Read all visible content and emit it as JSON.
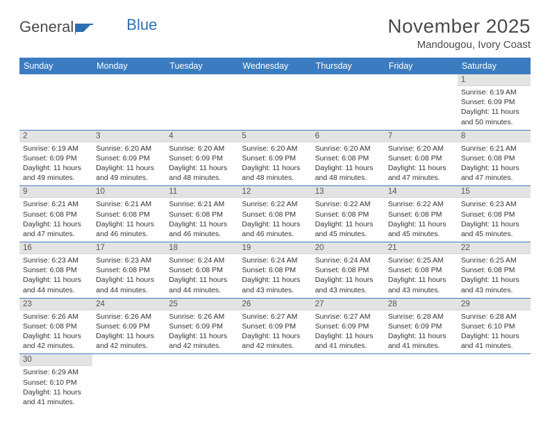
{
  "logo": {
    "text1": "General",
    "text2": "Blue"
  },
  "title": "November 2025",
  "location": "Mandougou, Ivory Coast",
  "colors": {
    "header_bg": "#3b7bbf",
    "header_fg": "#ffffff",
    "daynum_bg": "#e3e3e3",
    "daynum_fg": "#555555",
    "border": "#3b7bbf",
    "text": "#333333",
    "logo_gray": "#4a4a4a",
    "logo_blue": "#2d6fb5"
  },
  "day_headers": [
    "Sunday",
    "Monday",
    "Tuesday",
    "Wednesday",
    "Thursday",
    "Friday",
    "Saturday"
  ],
  "weeks": [
    [
      null,
      null,
      null,
      null,
      null,
      null,
      {
        "n": "1",
        "sr": "Sunrise: 6:19 AM",
        "ss": "Sunset: 6:09 PM",
        "dl": "Daylight: 11 hours and 50 minutes."
      }
    ],
    [
      {
        "n": "2",
        "sr": "Sunrise: 6:19 AM",
        "ss": "Sunset: 6:09 PM",
        "dl": "Daylight: 11 hours and 49 minutes."
      },
      {
        "n": "3",
        "sr": "Sunrise: 6:20 AM",
        "ss": "Sunset: 6:09 PM",
        "dl": "Daylight: 11 hours and 49 minutes."
      },
      {
        "n": "4",
        "sr": "Sunrise: 6:20 AM",
        "ss": "Sunset: 6:09 PM",
        "dl": "Daylight: 11 hours and 48 minutes."
      },
      {
        "n": "5",
        "sr": "Sunrise: 6:20 AM",
        "ss": "Sunset: 6:09 PM",
        "dl": "Daylight: 11 hours and 48 minutes."
      },
      {
        "n": "6",
        "sr": "Sunrise: 6:20 AM",
        "ss": "Sunset: 6:08 PM",
        "dl": "Daylight: 11 hours and 48 minutes."
      },
      {
        "n": "7",
        "sr": "Sunrise: 6:20 AM",
        "ss": "Sunset: 6:08 PM",
        "dl": "Daylight: 11 hours and 47 minutes."
      },
      {
        "n": "8",
        "sr": "Sunrise: 6:21 AM",
        "ss": "Sunset: 6:08 PM",
        "dl": "Daylight: 11 hours and 47 minutes."
      }
    ],
    [
      {
        "n": "9",
        "sr": "Sunrise: 6:21 AM",
        "ss": "Sunset: 6:08 PM",
        "dl": "Daylight: 11 hours and 47 minutes."
      },
      {
        "n": "10",
        "sr": "Sunrise: 6:21 AM",
        "ss": "Sunset: 6:08 PM",
        "dl": "Daylight: 11 hours and 46 minutes."
      },
      {
        "n": "11",
        "sr": "Sunrise: 6:21 AM",
        "ss": "Sunset: 6:08 PM",
        "dl": "Daylight: 11 hours and 46 minutes."
      },
      {
        "n": "12",
        "sr": "Sunrise: 6:22 AM",
        "ss": "Sunset: 6:08 PM",
        "dl": "Daylight: 11 hours and 46 minutes."
      },
      {
        "n": "13",
        "sr": "Sunrise: 6:22 AM",
        "ss": "Sunset: 6:08 PM",
        "dl": "Daylight: 11 hours and 45 minutes."
      },
      {
        "n": "14",
        "sr": "Sunrise: 6:22 AM",
        "ss": "Sunset: 6:08 PM",
        "dl": "Daylight: 11 hours and 45 minutes."
      },
      {
        "n": "15",
        "sr": "Sunrise: 6:23 AM",
        "ss": "Sunset: 6:08 PM",
        "dl": "Daylight: 11 hours and 45 minutes."
      }
    ],
    [
      {
        "n": "16",
        "sr": "Sunrise: 6:23 AM",
        "ss": "Sunset: 6:08 PM",
        "dl": "Daylight: 11 hours and 44 minutes."
      },
      {
        "n": "17",
        "sr": "Sunrise: 6:23 AM",
        "ss": "Sunset: 6:08 PM",
        "dl": "Daylight: 11 hours and 44 minutes."
      },
      {
        "n": "18",
        "sr": "Sunrise: 6:24 AM",
        "ss": "Sunset: 6:08 PM",
        "dl": "Daylight: 11 hours and 44 minutes."
      },
      {
        "n": "19",
        "sr": "Sunrise: 6:24 AM",
        "ss": "Sunset: 6:08 PM",
        "dl": "Daylight: 11 hours and 43 minutes."
      },
      {
        "n": "20",
        "sr": "Sunrise: 6:24 AM",
        "ss": "Sunset: 6:08 PM",
        "dl": "Daylight: 11 hours and 43 minutes."
      },
      {
        "n": "21",
        "sr": "Sunrise: 6:25 AM",
        "ss": "Sunset: 6:08 PM",
        "dl": "Daylight: 11 hours and 43 minutes."
      },
      {
        "n": "22",
        "sr": "Sunrise: 6:25 AM",
        "ss": "Sunset: 6:08 PM",
        "dl": "Daylight: 11 hours and 43 minutes."
      }
    ],
    [
      {
        "n": "23",
        "sr": "Sunrise: 6:26 AM",
        "ss": "Sunset: 6:08 PM",
        "dl": "Daylight: 11 hours and 42 minutes."
      },
      {
        "n": "24",
        "sr": "Sunrise: 6:26 AM",
        "ss": "Sunset: 6:09 PM",
        "dl": "Daylight: 11 hours and 42 minutes."
      },
      {
        "n": "25",
        "sr": "Sunrise: 6:26 AM",
        "ss": "Sunset: 6:09 PM",
        "dl": "Daylight: 11 hours and 42 minutes."
      },
      {
        "n": "26",
        "sr": "Sunrise: 6:27 AM",
        "ss": "Sunset: 6:09 PM",
        "dl": "Daylight: 11 hours and 42 minutes."
      },
      {
        "n": "27",
        "sr": "Sunrise: 6:27 AM",
        "ss": "Sunset: 6:09 PM",
        "dl": "Daylight: 11 hours and 41 minutes."
      },
      {
        "n": "28",
        "sr": "Sunrise: 6:28 AM",
        "ss": "Sunset: 6:09 PM",
        "dl": "Daylight: 11 hours and 41 minutes."
      },
      {
        "n": "29",
        "sr": "Sunrise: 6:28 AM",
        "ss": "Sunset: 6:10 PM",
        "dl": "Daylight: 11 hours and 41 minutes."
      }
    ],
    [
      {
        "n": "30",
        "sr": "Sunrise: 6:29 AM",
        "ss": "Sunset: 6:10 PM",
        "dl": "Daylight: 11 hours and 41 minutes."
      },
      null,
      null,
      null,
      null,
      null,
      null
    ]
  ]
}
